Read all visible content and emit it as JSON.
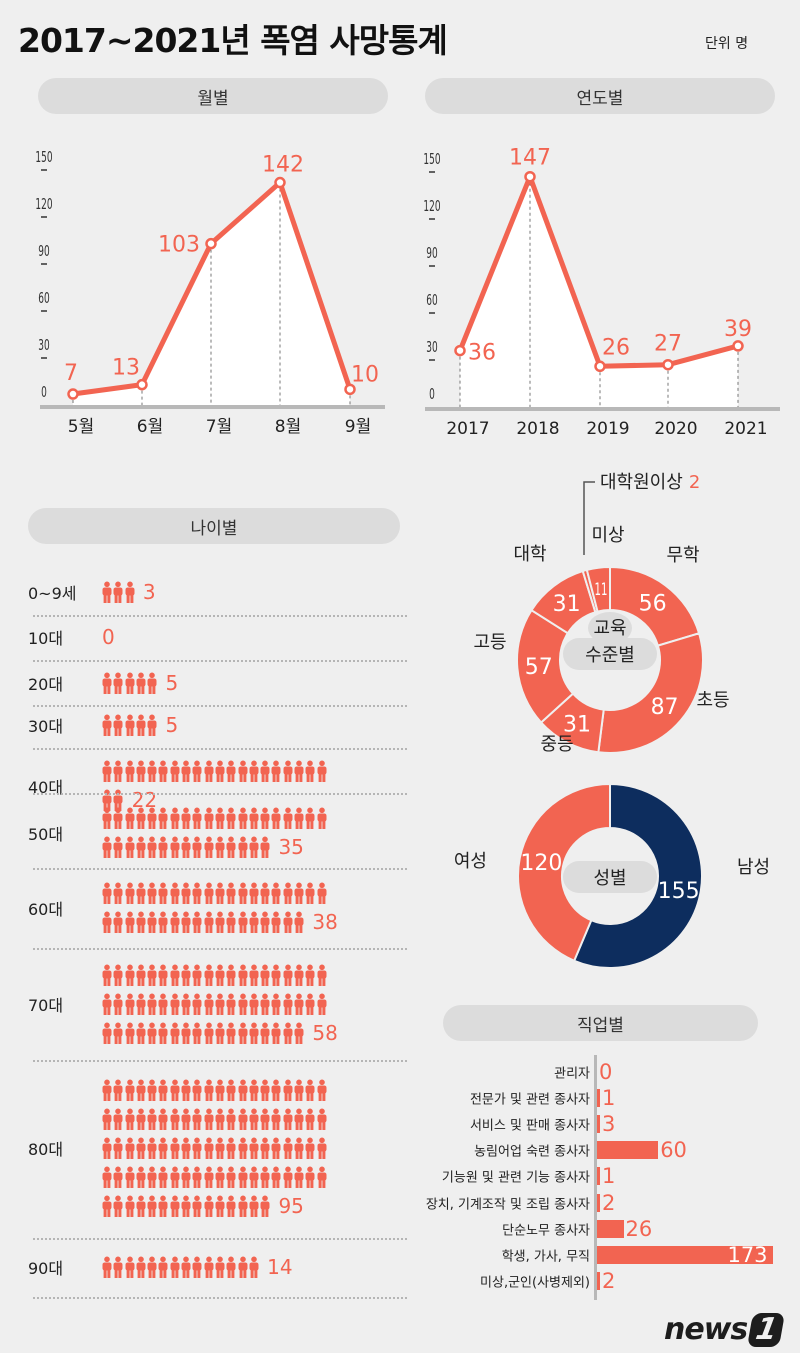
{
  "title": "2017~2021년 폭염 사망통계",
  "unit": "단위 명",
  "sections": {
    "monthly": "월별",
    "yearly": "연도별",
    "age": "나이별",
    "job": "직업별"
  },
  "education_center": {
    "line1": "교육",
    "line2": "수준별"
  },
  "gender_center": "성별",
  "logo": {
    "text": "news",
    "mark": "1"
  },
  "colors": {
    "accent": "#f26451",
    "male": "#0d2d5e",
    "background": "#efefef",
    "pill": "#dcdcdc",
    "axis": "#b8b8b8"
  },
  "chart_data": [
    {
      "id": "monthly",
      "type": "line",
      "categories": [
        "5월",
        "6월",
        "7월",
        "8월",
        "9월"
      ],
      "values": [
        7,
        13,
        103,
        142,
        10
      ],
      "yticks": [
        0,
        30,
        60,
        90,
        120,
        150
      ],
      "ylim": [
        0,
        150
      ],
      "grid": false
    },
    {
      "id": "yearly",
      "type": "line",
      "categories": [
        "2017",
        "2018",
        "2019",
        "2020",
        "2021"
      ],
      "values": [
        36,
        147,
        26,
        27,
        39
      ],
      "yticks": [
        0,
        30,
        60,
        90,
        120,
        150
      ],
      "ylim": [
        0,
        150
      ],
      "grid": false
    },
    {
      "id": "age",
      "type": "bar",
      "style": "pictogram",
      "categories": [
        "0~9세",
        "10대",
        "20대",
        "30대",
        "40대",
        "50대",
        "60대",
        "70대",
        "80대",
        "90대"
      ],
      "values": [
        3,
        0,
        5,
        5,
        22,
        35,
        38,
        58,
        95,
        14
      ]
    },
    {
      "id": "education",
      "type": "pie",
      "style": "donut",
      "categories": [
        "무학",
        "초등",
        "중등",
        "고등",
        "대학",
        "대학원이상",
        "미상"
      ],
      "values": [
        56,
        87,
        31,
        57,
        31,
        2,
        11
      ]
    },
    {
      "id": "gender",
      "type": "pie",
      "style": "donut",
      "categories": [
        "남성",
        "여성"
      ],
      "values": [
        155,
        120
      ]
    },
    {
      "id": "job",
      "type": "bar",
      "orientation": "horizontal",
      "categories": [
        "관리자",
        "전문가 및 관련 종사자",
        "서비스 및 판매 종사자",
        "농림어업 숙련 종사자",
        "기능원 및 관련 기능 종사자",
        "장치, 기계조작 및 조립 종사자",
        "단순노무 종사자",
        "학생, 가사, 무직",
        "미상,군인(사병제외)"
      ],
      "values": [
        0,
        1,
        3,
        60,
        1,
        2,
        26,
        173,
        2
      ]
    }
  ]
}
